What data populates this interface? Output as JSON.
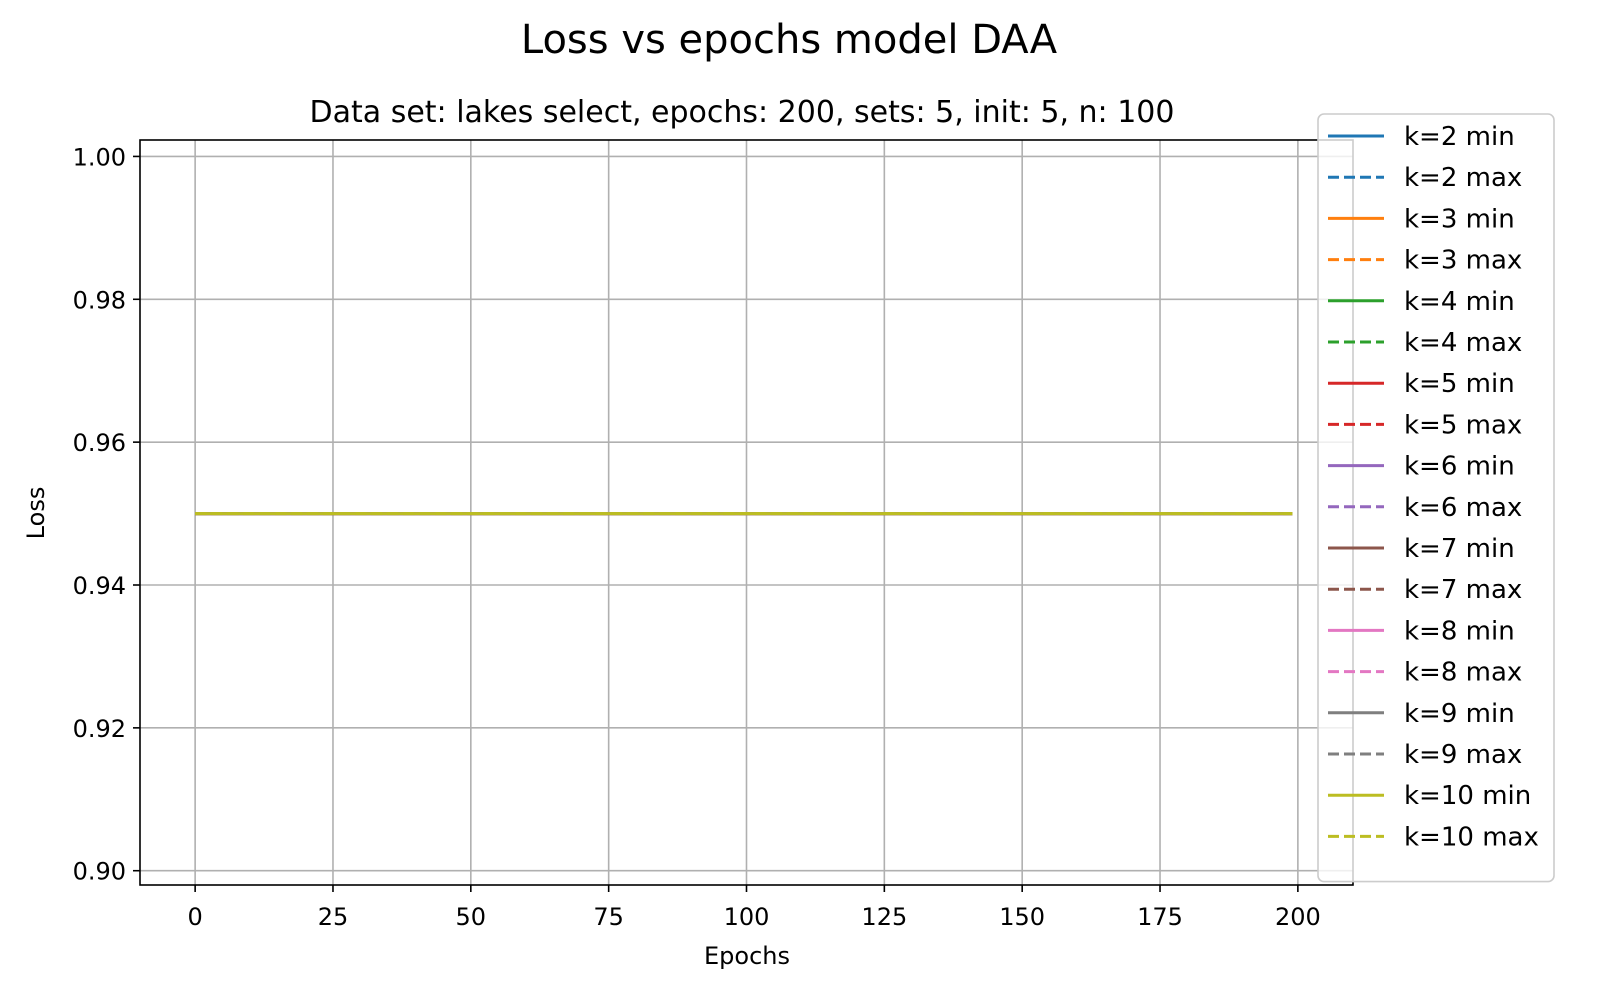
{
  "chart_data": {
    "type": "line",
    "title": "Loss vs epochs model DAA",
    "subtitle": "Data set:  lakes select, epochs: 200, sets: 5, init: 5, n: 100",
    "xlabel": "Epochs",
    "ylabel": "Loss",
    "xlim": [
      -10,
      210
    ],
    "ylim": [
      0.898,
      1.0023
    ],
    "xticks": [
      0,
      25,
      50,
      75,
      100,
      125,
      150,
      175,
      200
    ],
    "yticks": [
      0.9,
      0.92,
      0.94,
      0.96,
      0.98,
      1.0
    ],
    "xtick_labels": [
      "0",
      "25",
      "50",
      "75",
      "100",
      "125",
      "150",
      "175",
      "200"
    ],
    "ytick_labels": [
      "0.90",
      "0.92",
      "0.94",
      "0.96",
      "0.98",
      "1.00"
    ],
    "grid": true,
    "legend_position": "right",
    "x": [
      0,
      199
    ],
    "series": [
      {
        "name": "k=2 min",
        "color": "#1f77b4",
        "dash": "solid",
        "values": [
          0.95,
          0.95
        ]
      },
      {
        "name": "k=2 max",
        "color": "#1f77b4",
        "dash": "dashed",
        "values": [
          0.95,
          0.95
        ]
      },
      {
        "name": "k=3 min",
        "color": "#ff7f0e",
        "dash": "solid",
        "values": [
          0.95,
          0.95
        ]
      },
      {
        "name": "k=3 max",
        "color": "#ff7f0e",
        "dash": "dashed",
        "values": [
          0.95,
          0.95
        ]
      },
      {
        "name": "k=4 min",
        "color": "#2ca02c",
        "dash": "solid",
        "values": [
          0.95,
          0.95
        ]
      },
      {
        "name": "k=4 max",
        "color": "#2ca02c",
        "dash": "dashed",
        "values": [
          0.95,
          0.95
        ]
      },
      {
        "name": "k=5 min",
        "color": "#d62728",
        "dash": "solid",
        "values": [
          0.95,
          0.95
        ]
      },
      {
        "name": "k=5 max",
        "color": "#d62728",
        "dash": "dashed",
        "values": [
          0.95,
          0.95
        ]
      },
      {
        "name": "k=6 min",
        "color": "#9467bd",
        "dash": "solid",
        "values": [
          0.95,
          0.95
        ]
      },
      {
        "name": "k=6 max",
        "color": "#9467bd",
        "dash": "dashed",
        "values": [
          0.95,
          0.95
        ]
      },
      {
        "name": "k=7 min",
        "color": "#8c564b",
        "dash": "solid",
        "values": [
          0.95,
          0.95
        ]
      },
      {
        "name": "k=7 max",
        "color": "#8c564b",
        "dash": "dashed",
        "values": [
          0.95,
          0.95
        ]
      },
      {
        "name": "k=8 min",
        "color": "#e377c2",
        "dash": "solid",
        "values": [
          0.95,
          0.95
        ]
      },
      {
        "name": "k=8 max",
        "color": "#e377c2",
        "dash": "dashed",
        "values": [
          0.95,
          0.95
        ]
      },
      {
        "name": "k=9 min",
        "color": "#7f7f7f",
        "dash": "solid",
        "values": [
          0.95,
          0.95
        ]
      },
      {
        "name": "k=9 max",
        "color": "#7f7f7f",
        "dash": "dashed",
        "values": [
          0.95,
          0.95
        ]
      },
      {
        "name": "k=10 min",
        "color": "#bcbd22",
        "dash": "solid",
        "values": [
          0.95,
          0.95
        ]
      },
      {
        "name": "k=10 max",
        "color": "#bcbd22",
        "dash": "dashed",
        "values": [
          0.95,
          0.95
        ]
      }
    ]
  }
}
